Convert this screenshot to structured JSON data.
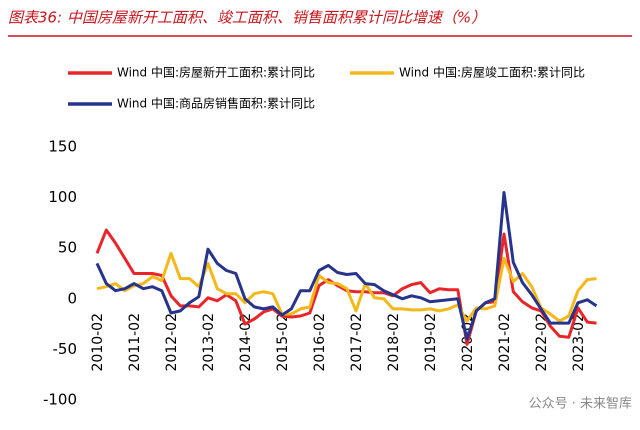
{
  "chart_data": {
    "type": "line",
    "title": "图表36:  中国房屋新开工面积、竣工面积、销售面积累计同比增速（%）",
    "watermark": "公众号 · 未来智库",
    "categories": [
      "2010-02",
      null,
      null,
      null,
      "2011-02",
      null,
      null,
      null,
      "2012-02",
      null,
      null,
      null,
      "2013-02",
      null,
      null,
      null,
      "2014-02",
      null,
      null,
      null,
      "2015-02",
      null,
      null,
      null,
      "2016-02",
      null,
      null,
      null,
      "2017-02",
      null,
      null,
      null,
      "2018-02",
      null,
      null,
      null,
      "2019-02",
      null,
      null,
      null,
      "2020-02",
      null,
      null,
      null,
      "2021-02",
      null,
      null,
      null,
      "2022-02",
      null,
      null,
      null,
      "2023-02",
      null,
      null
    ],
    "series": [
      {
        "name": "Wind 中国:房屋新开工面积:累计同比",
        "color": "#e8262a",
        "values": [
          45,
          68,
          55,
          40,
          25,
          25,
          25,
          23,
          3,
          -7,
          -7,
          -8,
          1,
          -2,
          4,
          -2,
          -25,
          -20,
          -13,
          -10,
          -17,
          -18,
          -17,
          -14,
          13,
          19,
          13,
          8,
          7,
          7,
          6,
          6,
          3,
          10,
          14,
          16,
          6,
          10,
          9,
          9,
          -45,
          -12,
          -4,
          -3,
          64,
          7,
          -3,
          -9,
          -12,
          -27,
          -37,
          -38,
          -9,
          -23,
          -24
        ]
      },
      {
        "name": "Wind 中国:房屋竣工面积:累计同比",
        "color": "#f5b81b",
        "values": [
          10,
          12,
          15,
          8,
          13,
          15,
          22,
          18,
          45,
          20,
          20,
          12,
          35,
          10,
          5,
          5,
          -4,
          5,
          7,
          5,
          -15,
          -15,
          -10,
          -8,
          23,
          16,
          15,
          10,
          -12,
          15,
          1,
          0,
          -10,
          -10,
          -11,
          -11,
          -10,
          -12,
          -10,
          -6,
          -22,
          -9,
          -10,
          -7,
          40,
          17,
          25,
          12,
          -9,
          -15,
          -22,
          -17,
          8,
          19,
          20
        ]
      },
      {
        "name": "Wind 中国:商品房销售面积:累计同比",
        "color": "#27348b",
        "values": [
          35,
          15,
          8,
          10,
          15,
          10,
          12,
          8,
          -14,
          -12,
          -4,
          2,
          49,
          35,
          28,
          25,
          0,
          -8,
          -10,
          -8,
          -16,
          -10,
          8,
          8,
          28,
          33,
          26,
          24,
          25,
          15,
          14,
          8,
          4,
          0,
          3,
          1,
          -3,
          -2,
          -1,
          0,
          -40,
          -12,
          -4,
          0,
          105,
          36,
          16,
          4,
          -10,
          -24,
          -24,
          -24,
          -4,
          -1,
          -7
        ]
      }
    ],
    "ylim": [
      -100,
      150
    ],
    "yticks": [
      -100,
      -50,
      0,
      50,
      100,
      150
    ],
    "grid": false
  }
}
